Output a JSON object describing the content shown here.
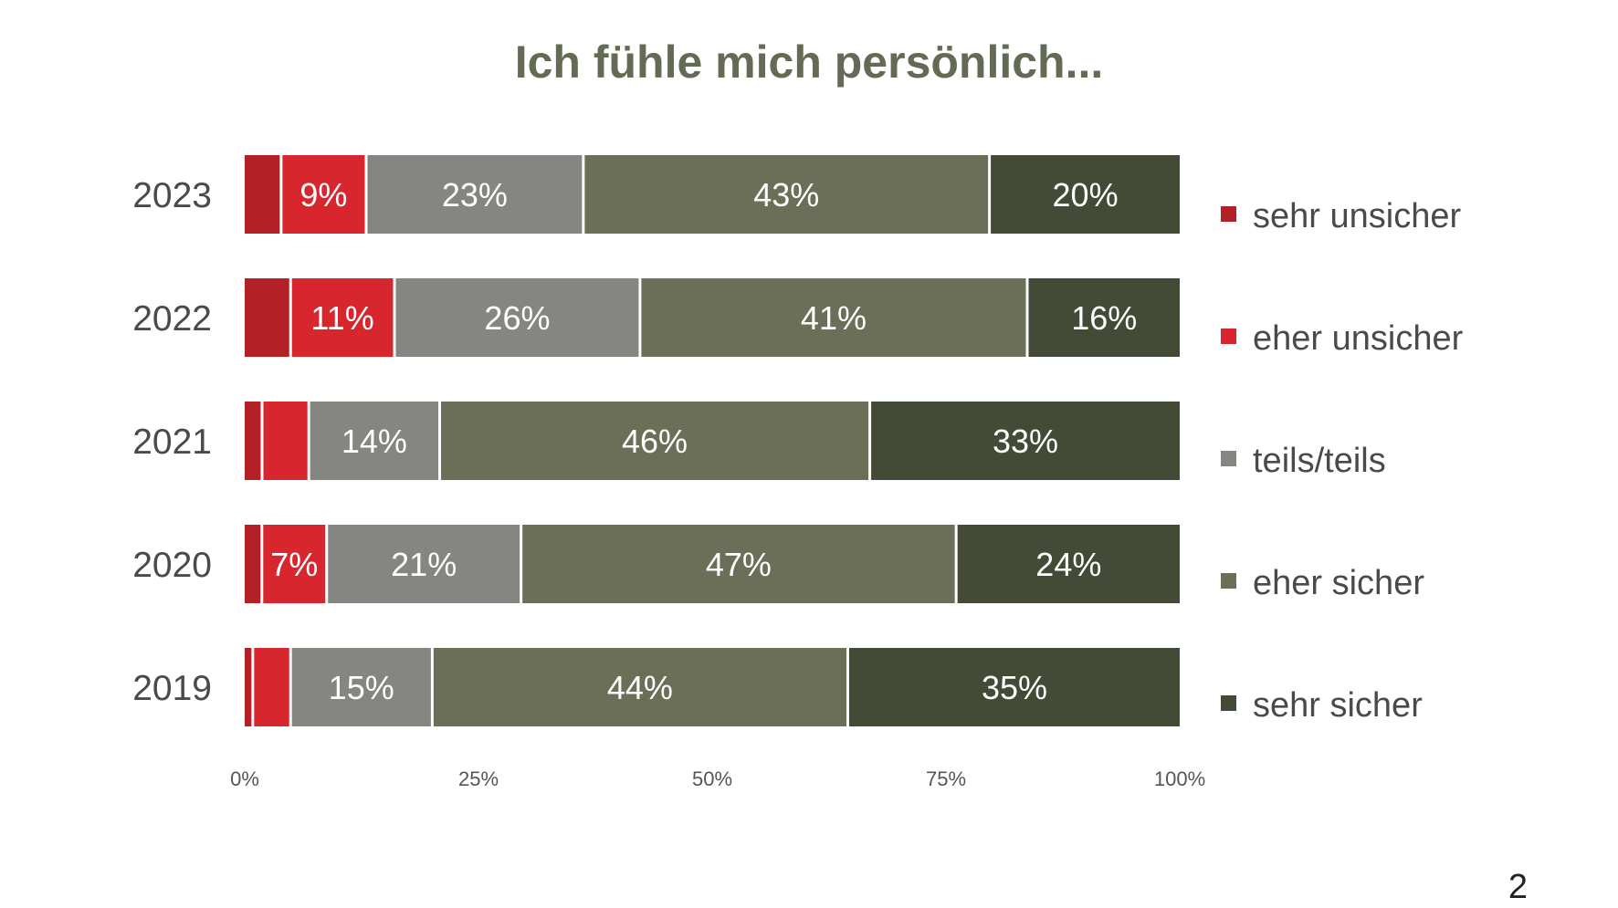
{
  "chart_data": {
    "type": "bar",
    "orientation": "horizontal",
    "stacked": true,
    "normalized": true,
    "title": "Ich fühle mich persönlich...",
    "categories": [
      "2023",
      "2022",
      "2021",
      "2020",
      "2019"
    ],
    "series": [
      {
        "name": "sehr unsicher",
        "color": "#b32025",
        "values": [
          4,
          5,
          2,
          2,
          1
        ]
      },
      {
        "name": "eher unsicher",
        "color": "#d7262d",
        "values": [
          9,
          11,
          5,
          7,
          4
        ]
      },
      {
        "name": "teils/teils",
        "color": "#858582",
        "values": [
          23,
          26,
          14,
          21,
          15
        ]
      },
      {
        "name": "eher sicher",
        "color": "#6b6f58",
        "values": [
          43,
          41,
          46,
          47,
          44
        ]
      },
      {
        "name": "sehr sicher",
        "color": "#434b36",
        "values": [
          20,
          16,
          33,
          24,
          35
        ]
      }
    ],
    "labels_shown": [
      [
        null,
        "9%",
        "23%",
        "43%",
        "20%"
      ],
      [
        null,
        "11%",
        "26%",
        "41%",
        "16%"
      ],
      [
        null,
        null,
        "14%",
        "46%",
        "33%"
      ],
      [
        null,
        "7%",
        "21%",
        "47%",
        "24%"
      ],
      [
        null,
        null,
        "15%",
        "44%",
        "35%"
      ]
    ],
    "xticks": [
      "0%",
      "25%",
      "50%",
      "75%",
      "100%"
    ],
    "xlim": [
      0,
      100
    ],
    "grid": false,
    "legend_position": "right"
  },
  "page_number": "2"
}
